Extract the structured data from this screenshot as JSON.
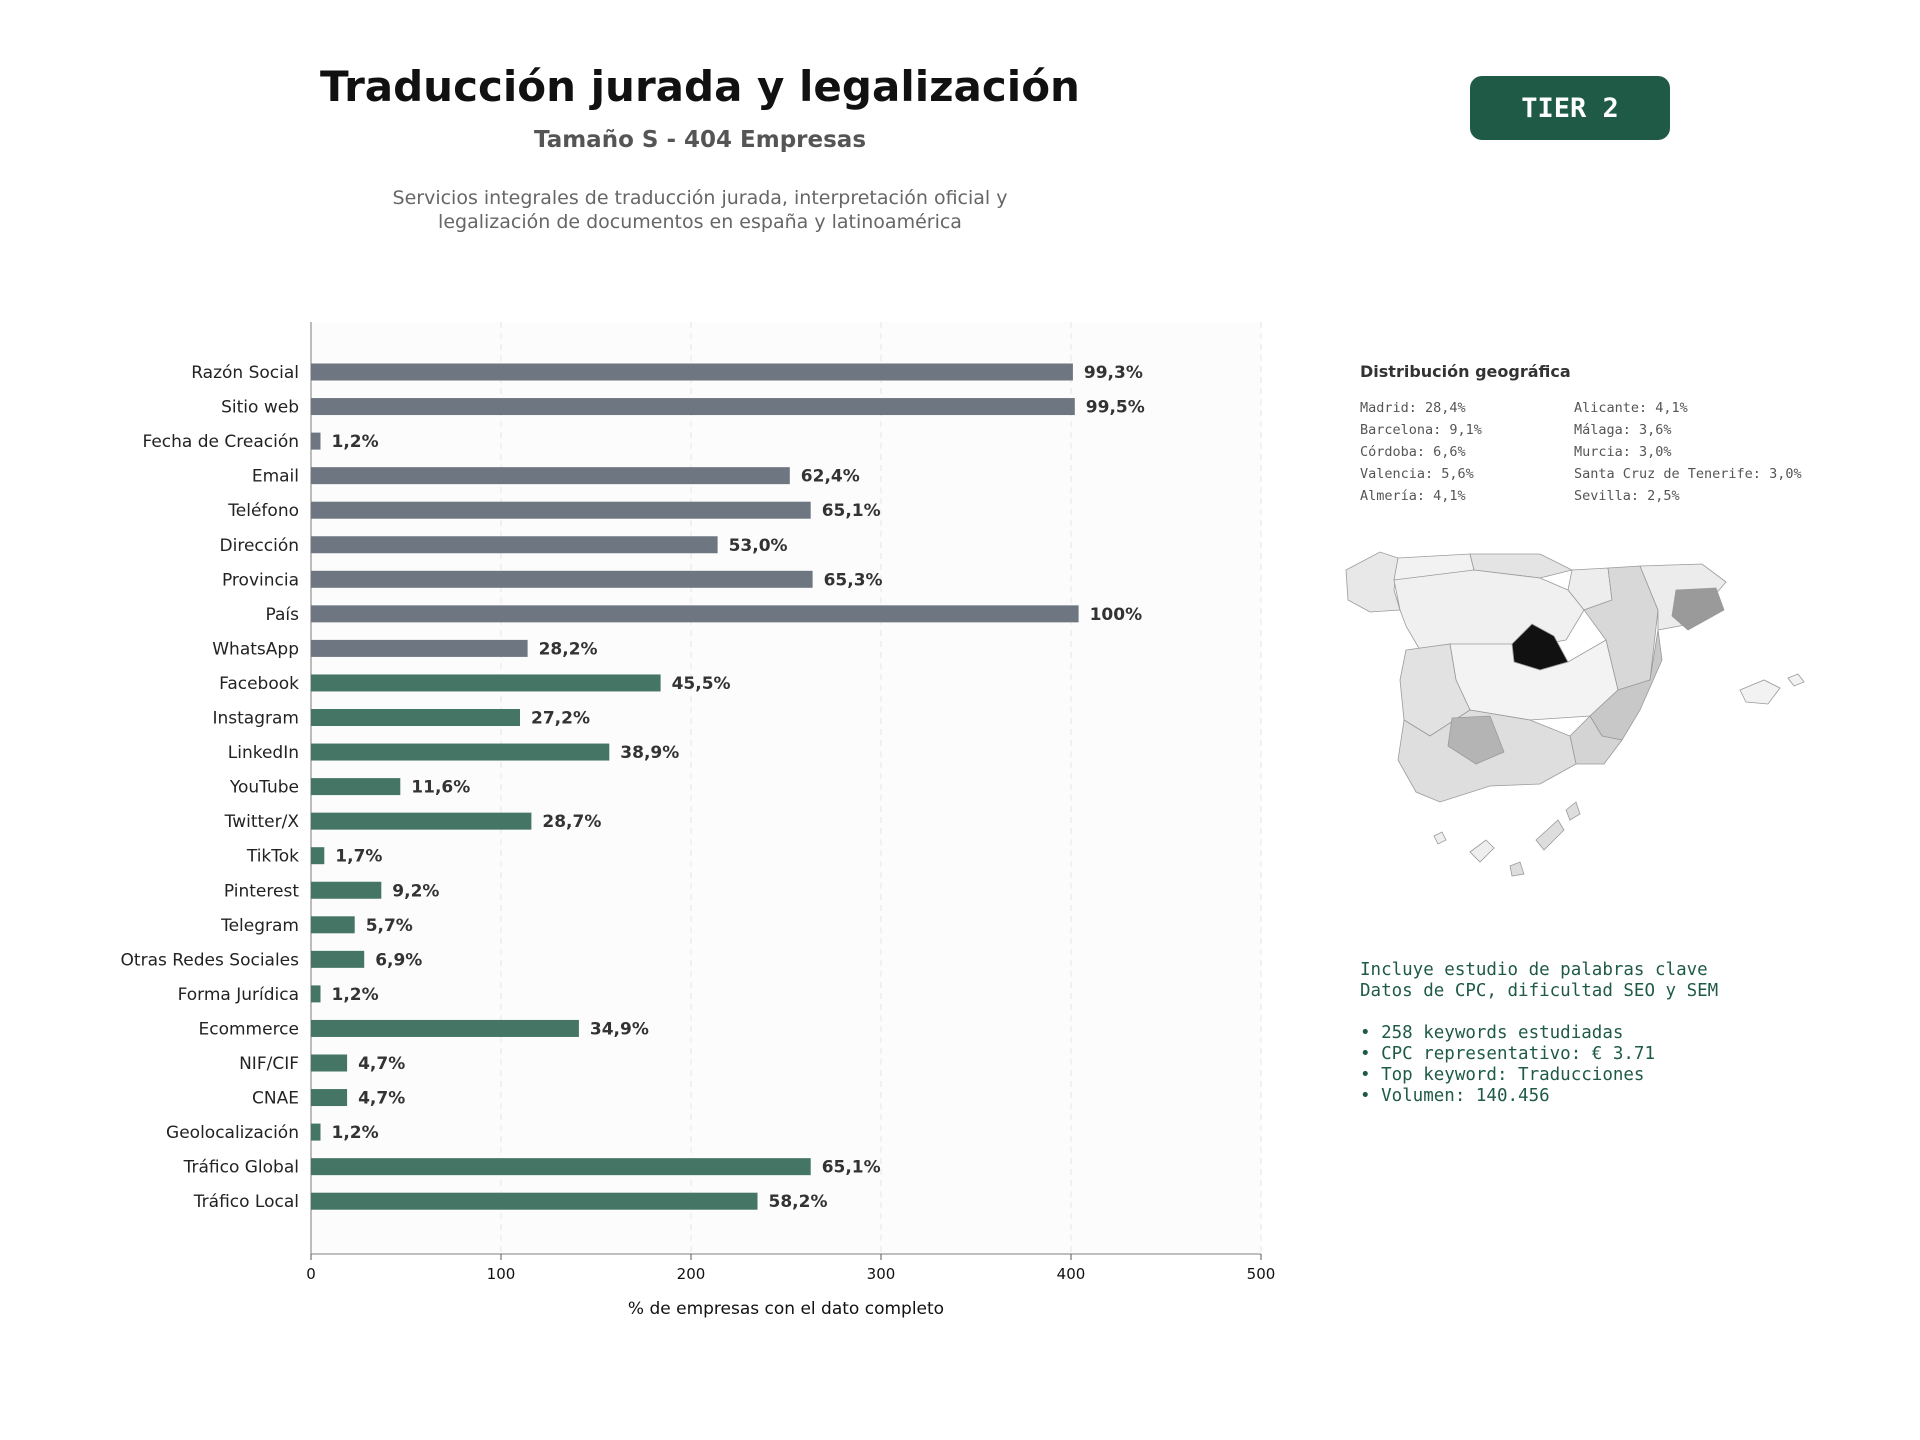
{
  "header": {
    "title": "Traducción jurada y legalización",
    "subtitle": "Tamaño S - 404 Empresas",
    "description_line1": "Servicios integrales de traducción jurada, interpretación oficial y",
    "description_line2": "legalización de documentos en españa y latinoamérica"
  },
  "tier_badge": {
    "label": "TIER 2",
    "color": "#1e5a45"
  },
  "colors": {
    "gray_bar": "#6e7681",
    "green_bar": "#457565",
    "plot_bg": "#fcfcfc",
    "accent_text": "#1f5a46"
  },
  "chart_data": {
    "type": "bar",
    "orientation": "horizontal",
    "categories": [
      "Razón Social",
      "Sitio web",
      "Fecha de Creación",
      "Email",
      "Teléfono",
      "Dirección",
      "Provincia",
      "País",
      "WhatsApp",
      "Facebook",
      "Instagram",
      "LinkedIn",
      "YouTube",
      "Twitter/X",
      "TikTok",
      "Pinterest",
      "Telegram",
      "Otras Redes Sociales",
      "Forma Jurídica",
      "Ecommerce",
      "NIF/CIF",
      "CNAE",
      "Geolocalización",
      "Tráfico Global",
      "Tráfico Local"
    ],
    "values": [
      401,
      402,
      5,
      252,
      263,
      214,
      264,
      404,
      114,
      184,
      110,
      157,
      47,
      116,
      7,
      37,
      23,
      28,
      5,
      141,
      19,
      19,
      5,
      263,
      235
    ],
    "value_labels": [
      "99,3%",
      "99,5%",
      "1,2%",
      "62,4%",
      "65,1%",
      "53,0%",
      "65,3%",
      "100%",
      "28,2%",
      "45,5%",
      "27,2%",
      "38,9%",
      "11,6%",
      "28,7%",
      "1,7%",
      "9,2%",
      "5,7%",
      "6,9%",
      "1,2%",
      "34,9%",
      "4,7%",
      "4,7%",
      "1,2%",
      "65,1%",
      "58,2%"
    ],
    "bar_groups": [
      "gray",
      "gray",
      "gray",
      "gray",
      "gray",
      "gray",
      "gray",
      "gray",
      "gray",
      "green",
      "green",
      "green",
      "green",
      "green",
      "green",
      "green",
      "green",
      "green",
      "green",
      "green",
      "green",
      "green",
      "green",
      "green",
      "green"
    ],
    "xlabel": "% de empresas con el dato completo",
    "xlim": [
      0,
      500
    ],
    "xticks": [
      0,
      100,
      200,
      300,
      400,
      500
    ],
    "grid": "vertical dashed"
  },
  "geo": {
    "title": "Distribución geográfica",
    "items": [
      "Madrid: 28,4%",
      "Alicante: 4,1%",
      "Barcelona: 9,1%",
      "Málaga: 3,6%",
      "Córdoba: 6,6%",
      "Murcia: 3,0%",
      "Valencia: 5,6%",
      "Santa Cruz de Tenerife: 3,0%",
      "Almería: 4,1%",
      "Sevilla: 2,5%"
    ]
  },
  "keywords": {
    "line1": "Incluye estudio de palabras clave",
    "line2": "Datos de CPC, dificultad SEO y SEM",
    "bullets": [
      "• 258 keywords estudiadas",
      "• CPC representativo: € 3.71",
      "• Top keyword: Traducciones",
      "• Volumen: 140.456"
    ]
  }
}
